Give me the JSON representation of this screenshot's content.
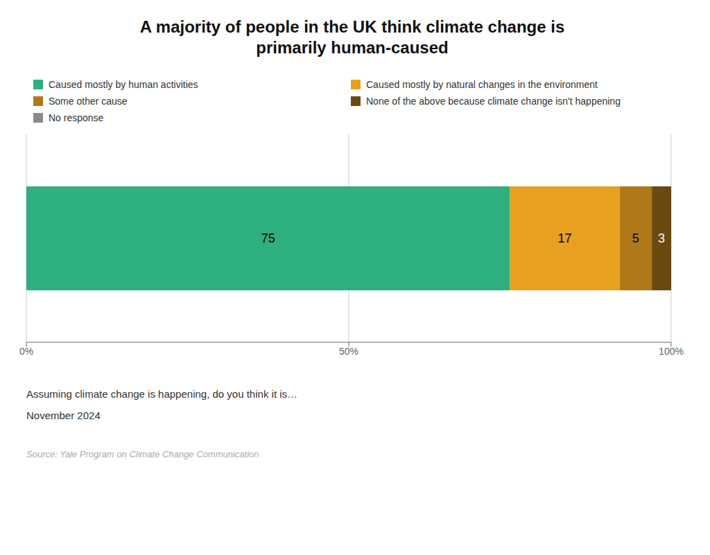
{
  "chart_data": {
    "type": "bar",
    "orientation": "horizontal",
    "stacked": true,
    "title": "A majority of people in the UK think climate change is\nprimarily human-caused",
    "categories": [
      null
    ],
    "series": [
      {
        "name": "Caused mostly by human activities",
        "color": "#2daf7e",
        "values": [
          75
        ],
        "value_labels": [
          "75"
        ]
      },
      {
        "name": "Caused mostly by natural changes in the environment",
        "color": "#e8a020",
        "values": [
          17
        ],
        "value_labels": [
          "17"
        ]
      },
      {
        "name": "Some other cause",
        "color": "#b07818",
        "values": [
          5
        ],
        "value_labels": [
          "5"
        ]
      },
      {
        "name": "None of the above because climate change isn't happening",
        "color": "#6b4a10",
        "values": [
          3
        ],
        "value_labels": [
          "3"
        ]
      },
      {
        "name": "No response",
        "color": "#8a8a8a",
        "values": [
          0
        ],
        "value_labels": [
          null
        ]
      }
    ],
    "xlabel": "Assuming climate change is happening, do you think it is…",
    "annotations": [
      "November 2024",
      "Source: Yale Program on Climate Change Communication"
    ],
    "xlim": [
      0,
      100
    ],
    "xticks": [
      {
        "value": 0,
        "label": "0%"
      },
      {
        "value": 50,
        "label": "50%"
      },
      {
        "value": 100,
        "label": "100%"
      }
    ],
    "grid": true,
    "legend": "upper left",
    "data_labels": true,
    "tick_labels": "x"
  }
}
